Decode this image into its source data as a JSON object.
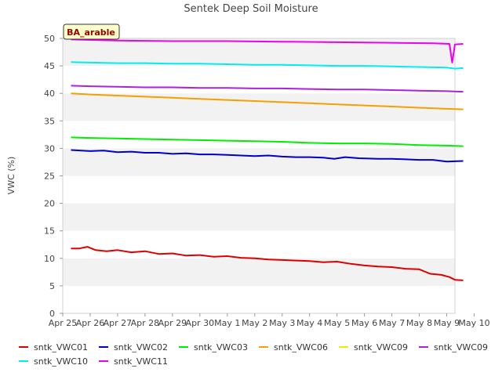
{
  "chart_data": {
    "type": "line",
    "title": "Sentek Deep Soil Moisture",
    "ylabel": "VWC (%)",
    "xlabel": "",
    "site_label": "BA_arable",
    "xlim": [
      0,
      14.3
    ],
    "ylim": [
      0,
      50
    ],
    "y_ticks": [
      0,
      5,
      10,
      15,
      20,
      25,
      30,
      35,
      40,
      45,
      50
    ],
    "x_ticks": [
      {
        "label": "Apr 25",
        "day": 0
      },
      {
        "label": "Apr 26",
        "day": 1
      },
      {
        "label": "Apr 27",
        "day": 2
      },
      {
        "label": "Apr 28",
        "day": 3
      },
      {
        "label": "Apr 29",
        "day": 4
      },
      {
        "label": "Apr 30",
        "day": 5
      },
      {
        "label": "May 1",
        "day": 6
      },
      {
        "label": "May 2",
        "day": 7
      },
      {
        "label": "May 3",
        "day": 8
      },
      {
        "label": "May 4",
        "day": 9
      },
      {
        "label": "May 5",
        "day": 10
      },
      {
        "label": "May 6",
        "day": 11
      },
      {
        "label": "May 7",
        "day": 12
      },
      {
        "label": "May 8",
        "day": 13
      },
      {
        "label": "May 9",
        "day": 14
      },
      {
        "label": "May 10",
        "day": 15
      }
    ],
    "grid": "horizontal bands",
    "legend_position": "bottom",
    "series": [
      {
        "name": "sntk_VWC01",
        "color": "#dd0000",
        "points": [
          [
            0.3,
            11.8
          ],
          [
            0.6,
            11.8
          ],
          [
            0.9,
            12.1
          ],
          [
            1.2,
            11.5
          ],
          [
            1.6,
            11.3
          ],
          [
            2,
            11.5
          ],
          [
            2.5,
            11.1
          ],
          [
            3,
            11.3
          ],
          [
            3.5,
            10.8
          ],
          [
            4,
            10.9
          ],
          [
            4.5,
            10.5
          ],
          [
            5,
            10.6
          ],
          [
            5.5,
            10.3
          ],
          [
            6,
            10.4
          ],
          [
            6.5,
            10.1
          ],
          [
            7,
            10
          ],
          [
            7.5,
            9.8
          ],
          [
            8,
            9.7
          ],
          [
            8.5,
            9.6
          ],
          [
            9,
            9.5
          ],
          [
            9.5,
            9.3
          ],
          [
            10,
            9.4
          ],
          [
            10.5,
            9
          ],
          [
            11,
            8.7
          ],
          [
            11.5,
            8.5
          ],
          [
            12,
            8.4
          ],
          [
            12.5,
            8.1
          ],
          [
            13,
            8
          ],
          [
            13.4,
            7.2
          ],
          [
            13.8,
            7
          ],
          [
            14.1,
            6.6
          ],
          [
            14.3,
            6.1
          ],
          [
            14.6,
            6.0
          ]
        ]
      },
      {
        "name": "sntk_VWC02",
        "color": "#0000cc",
        "points": [
          [
            0.3,
            29.7
          ],
          [
            1,
            29.5
          ],
          [
            1.5,
            29.6
          ],
          [
            2,
            29.3
          ],
          [
            2.5,
            29.4
          ],
          [
            3,
            29.2
          ],
          [
            3.5,
            29.2
          ],
          [
            4,
            29
          ],
          [
            4.5,
            29.1
          ],
          [
            5,
            28.9
          ],
          [
            5.5,
            28.9
          ],
          [
            6,
            28.8
          ],
          [
            6.5,
            28.7
          ],
          [
            7,
            28.6
          ],
          [
            7.5,
            28.7
          ],
          [
            8,
            28.5
          ],
          [
            8.5,
            28.4
          ],
          [
            9,
            28.4
          ],
          [
            9.5,
            28.3
          ],
          [
            9.9,
            28.1
          ],
          [
            10.3,
            28.4
          ],
          [
            10.8,
            28.2
          ],
          [
            11.5,
            28.1
          ],
          [
            12,
            28.1
          ],
          [
            12.5,
            28
          ],
          [
            13,
            27.9
          ],
          [
            13.5,
            27.9
          ],
          [
            14,
            27.6
          ],
          [
            14.6,
            27.7
          ]
        ]
      },
      {
        "name": "sntk_VWC03",
        "color": "#00ee00",
        "points": [
          [
            0.3,
            32
          ],
          [
            1,
            31.9
          ],
          [
            2,
            31.8
          ],
          [
            3,
            31.7
          ],
          [
            4,
            31.6
          ],
          [
            5,
            31.5
          ],
          [
            6,
            31.4
          ],
          [
            7,
            31.3
          ],
          [
            8,
            31.2
          ],
          [
            9,
            31
          ],
          [
            10,
            30.9
          ],
          [
            11,
            30.9
          ],
          [
            12,
            30.8
          ],
          [
            13,
            30.6
          ],
          [
            14,
            30.5
          ],
          [
            14.6,
            30.4
          ]
        ]
      },
      {
        "name": "sntk_VWC06",
        "color": "#f5a000",
        "points": [
          [
            0.3,
            40
          ],
          [
            1,
            39.8
          ],
          [
            2,
            39.6
          ],
          [
            3,
            39.4
          ],
          [
            4,
            39.2
          ],
          [
            5,
            39
          ],
          [
            6,
            38.8
          ],
          [
            7,
            38.6
          ],
          [
            8,
            38.4
          ],
          [
            9,
            38.2
          ],
          [
            10,
            38
          ],
          [
            11,
            37.8
          ],
          [
            12,
            37.6
          ],
          [
            13,
            37.4
          ],
          [
            14,
            37.2
          ],
          [
            14.6,
            37.1
          ]
        ]
      },
      {
        "name": "sntk_VWC09",
        "color": "#eeee00",
        "points": []
      },
      {
        "name": "sntk_VWC09",
        "color": "#aa22dd",
        "points": [
          [
            0.3,
            41.4
          ],
          [
            1,
            41.3
          ],
          [
            2,
            41.2
          ],
          [
            3,
            41.1
          ],
          [
            4,
            41.1
          ],
          [
            5,
            41
          ],
          [
            6,
            41
          ],
          [
            7,
            40.9
          ],
          [
            8,
            40.9
          ],
          [
            9,
            40.8
          ],
          [
            10,
            40.7
          ],
          [
            11,
            40.7
          ],
          [
            12,
            40.6
          ],
          [
            13,
            40.5
          ],
          [
            14,
            40.4
          ],
          [
            14.6,
            40.3
          ]
        ]
      },
      {
        "name": "sntk_VWC10",
        "color": "#00eeee",
        "points": [
          [
            0.3,
            45.7
          ],
          [
            1,
            45.6
          ],
          [
            2,
            45.5
          ],
          [
            3,
            45.5
          ],
          [
            4,
            45.4
          ],
          [
            5,
            45.4
          ],
          [
            6,
            45.3
          ],
          [
            7,
            45.2
          ],
          [
            8,
            45.2
          ],
          [
            9,
            45.1
          ],
          [
            10,
            45
          ],
          [
            11,
            45
          ],
          [
            12,
            44.9
          ],
          [
            13,
            44.8
          ],
          [
            14,
            44.7
          ],
          [
            14.3,
            44.5
          ],
          [
            14.6,
            44.6
          ]
        ]
      },
      {
        "name": "sntk_VWC11",
        "color": "#ee00ee",
        "points": [
          [
            0.3,
            49.8
          ],
          [
            2,
            49.6
          ],
          [
            4,
            49.5
          ],
          [
            6,
            49.5
          ],
          [
            8,
            49.4
          ],
          [
            10,
            49.3
          ],
          [
            12,
            49.2
          ],
          [
            13.5,
            49.1
          ],
          [
            14.1,
            49.0
          ],
          [
            14.2,
            45.6
          ],
          [
            14.3,
            48.9
          ],
          [
            14.6,
            49.0
          ]
        ]
      }
    ]
  }
}
